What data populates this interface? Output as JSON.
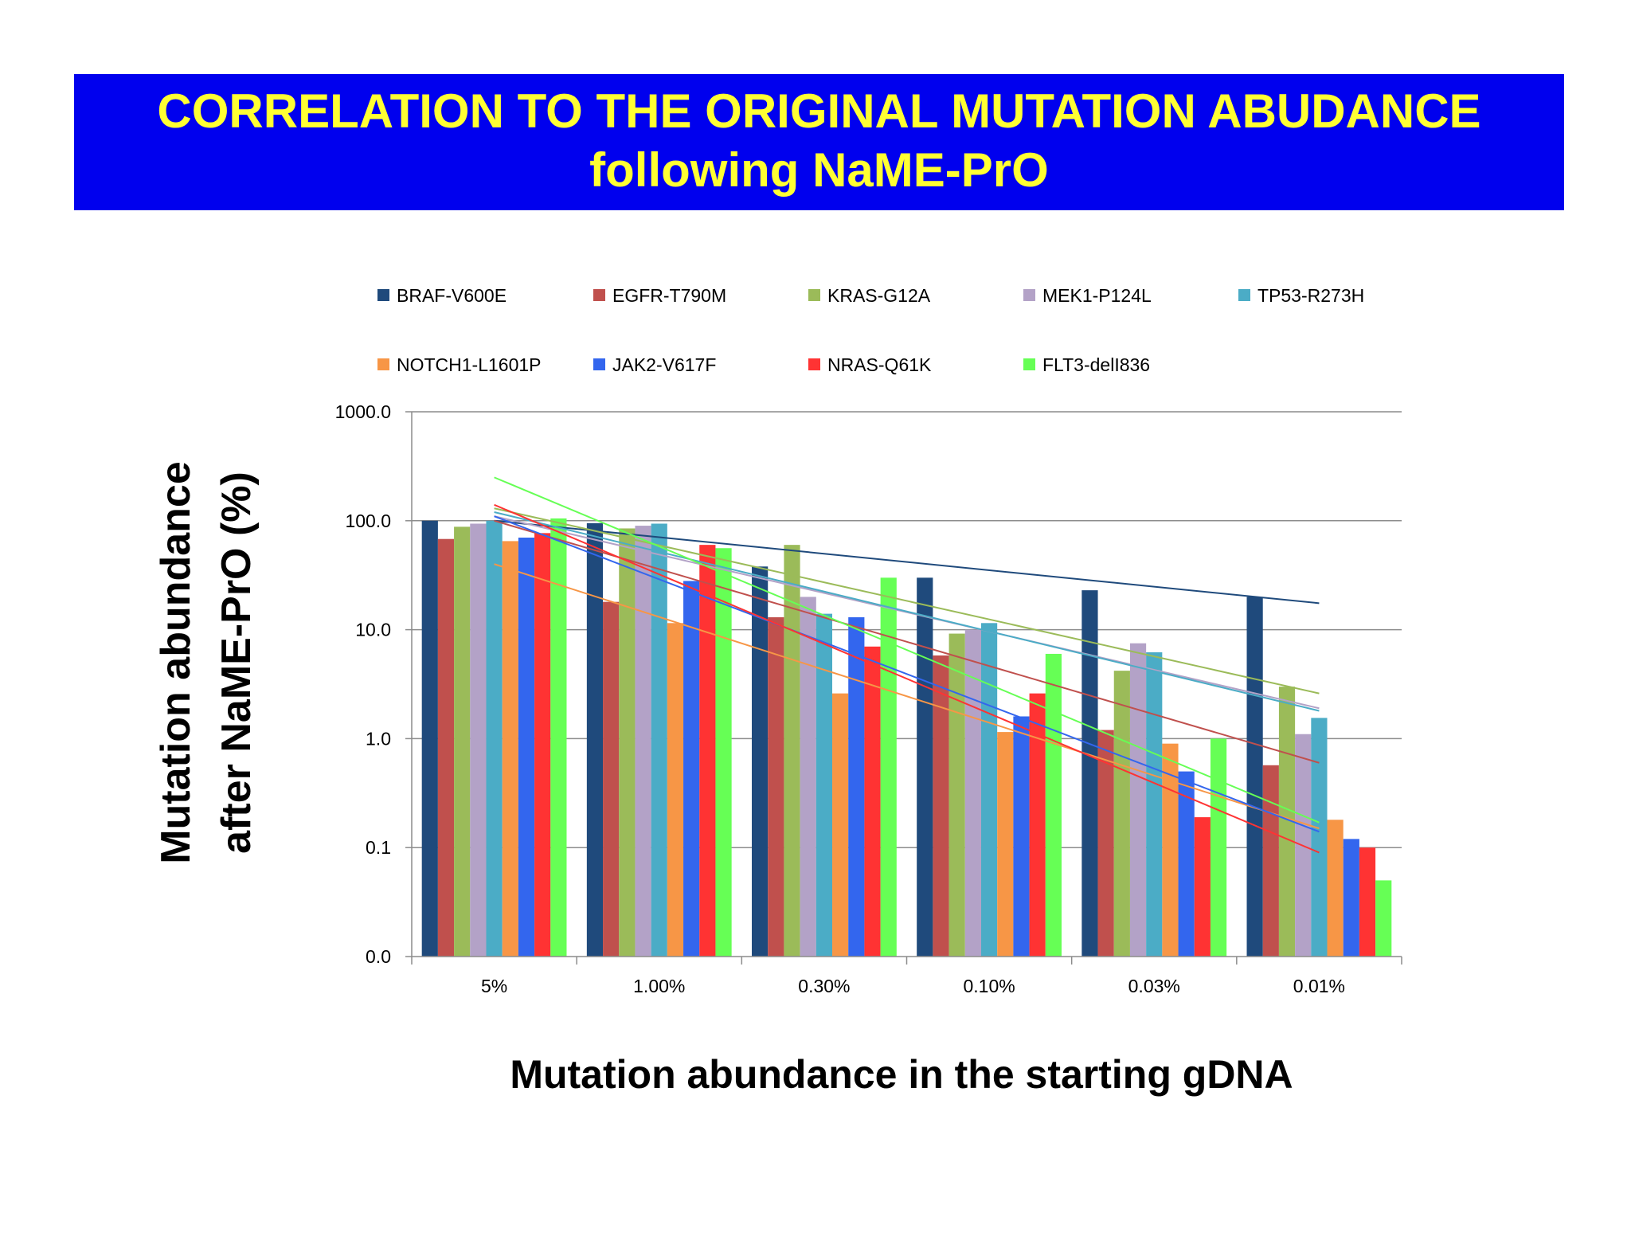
{
  "header": {
    "title_line1": "CORRELATION TO THE ORIGINAL MUTATION ABUDANCE",
    "title_line2": "following NaME-PrO"
  },
  "chart_data": {
    "type": "bar",
    "title": "CORRELATION TO THE ORIGINAL MUTATION ABUDANCE following NaME-PrO",
    "xlabel": "Mutation abundance in the starting gDNA",
    "ylabel_line1": "Mutation abundance",
    "ylabel_line2": "after NaME-PrO (%)",
    "y_scale": "log",
    "ylim": [
      0.01,
      1000
    ],
    "y_ticks": [
      0.01,
      0.1,
      1,
      10,
      100,
      1000
    ],
    "y_tick_labels": [
      "0.0",
      "0.1",
      "1.0",
      "10.0",
      "100.0",
      "1000.0"
    ],
    "grid": true,
    "legend_position": "top",
    "categories": [
      "5%",
      "1.00%",
      "0.30%",
      "0.10%",
      "0.03%",
      "0.01%"
    ],
    "series": [
      {
        "name": "BRAF-V600E",
        "color": "#1f4a7c",
        "values": [
          100,
          95,
          38,
          30,
          23,
          20
        ],
        "trendline": [
          100,
          17.5
        ]
      },
      {
        "name": "EGFR-T790M",
        "color": "#c0504d",
        "values": [
          68,
          18,
          13,
          5.8,
          1.2,
          0.57
        ],
        "trendline": [
          100,
          0.6
        ]
      },
      {
        "name": "KRAS-G12A",
        "color": "#9bbb59",
        "values": [
          88,
          85,
          60,
          9.2,
          4.2,
          3.0
        ],
        "trendline": [
          130,
          2.6
        ]
      },
      {
        "name": "MEK1-P124L",
        "color": "#b3a2c7",
        "values": [
          94,
          90,
          20,
          10,
          7.5,
          1.1
        ],
        "trendline": [
          110,
          1.9
        ]
      },
      {
        "name": "TP53-R273H",
        "color": "#4bacc6",
        "values": [
          100,
          94,
          14,
          11.5,
          6.2,
          1.55
        ],
        "trendline": [
          120,
          1.8
        ]
      },
      {
        "name": "NOTCH1-L1601P",
        "color": "#f79646",
        "values": [
          65,
          11.5,
          2.6,
          1.15,
          0.9,
          0.18
        ],
        "trendline": [
          40,
          0.15
        ]
      },
      {
        "name": "JAK2-V617F",
        "color": "#3366ee",
        "values": [
          70,
          28,
          13,
          1.6,
          0.5,
          0.12
        ],
        "trendline": [
          110,
          0.14
        ]
      },
      {
        "name": "NRAS-Q61K",
        "color": "#ff3333",
        "values": [
          77,
          60,
          7,
          2.6,
          0.19,
          0.1
        ],
        "trendline": [
          140,
          0.09
        ]
      },
      {
        "name": "FLT3-delI836",
        "color": "#66ff55",
        "values": [
          105,
          56,
          30,
          6,
          1.0,
          0.05
        ],
        "trendline": [
          250,
          0.17
        ]
      }
    ]
  }
}
